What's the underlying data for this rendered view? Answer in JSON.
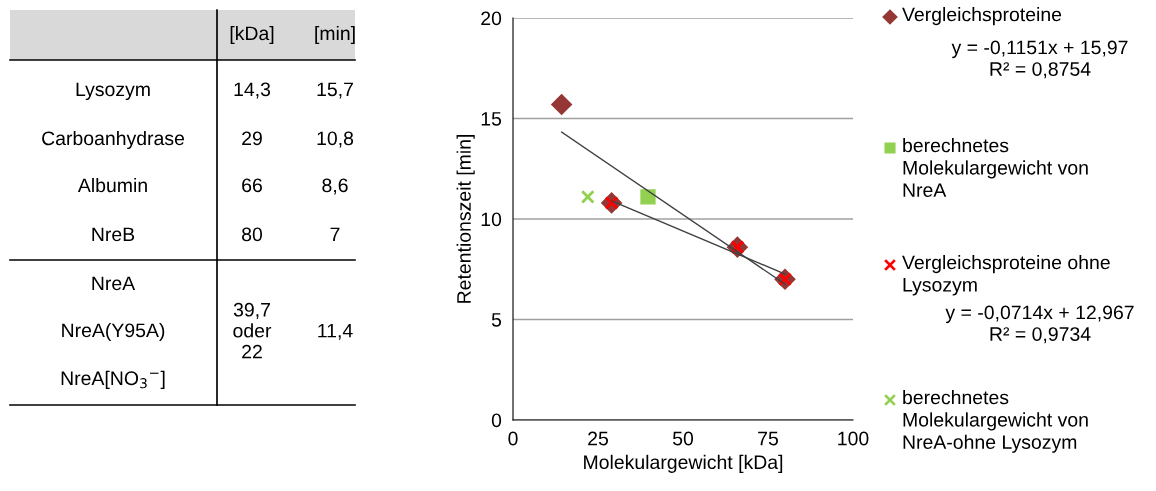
{
  "chart_data": [
    {
      "type": "other",
      "annotations": [
        "[kDa]",
        "[min]",
        "Lysozym",
        "14,3",
        "15,7",
        "Carboanhydrase",
        "29",
        "10,8",
        "Albumin",
        "66",
        "8,6",
        "NreB",
        "80",
        "7",
        "NreA",
        "39,7\noder\n22",
        "11,4",
        "NreA(Y95A)",
        "NreA[NO$_{3}$$^{−}$]"
      ]
    },
    {
      "type": "scatter",
      "xlabel": "Molekulargewicht [kDa]",
      "ylabel": "Retentionszeit [min]",
      "xlim": [
        0,
        100
      ],
      "xticks": [
        0,
        25,
        50,
        75,
        100
      ],
      "ylim": [
        0,
        20
      ],
      "yticks": [
        0,
        5,
        10,
        15,
        20
      ],
      "grid": "y",
      "legend": "right",
      "series": [
        {
          "type": "line",
          "x": [
            14.3,
            80
          ],
          "values": [
            14.32,
            6.76
          ],
          "color": "#404040",
          "marker": "none"
        },
        {
          "type": "line",
          "x": [
            29,
            80
          ],
          "values": [
            10.9,
            7.26
          ],
          "color": "#404040",
          "marker": "none"
        },
        {
          "name": "Vergleichsproteine",
          "x": [
            14.3,
            29,
            66,
            80
          ],
          "values": [
            15.7,
            10.8,
            8.6,
            7
          ],
          "color": "#953735",
          "marker": "diamond"
        },
        {
          "name": "berechnetes\nMolekulargewicht von\nNreA",
          "x": [
            39.7
          ],
          "values": [
            11.1
          ],
          "color": "#92d050",
          "marker": "square"
        },
        {
          "name": "Vergleichsproteine ohne\nLysozym",
          "x": [
            29,
            66,
            80
          ],
          "values": [
            10.8,
            8.6,
            7
          ],
          "color": "#ff0000",
          "marker": "cross"
        },
        {
          "name": "berechnetes\nMolekulargewicht von\nNreA-ohne Lysozym",
          "x": [
            22
          ],
          "values": [
            11.1
          ],
          "color": "#92d050",
          "marker": "cross"
        }
      ],
      "annotations": [
        "y = -0,1151x + 15,97\nR² = 0,8754",
        "y = -0,0714x + 12,967\nR² = 0,9734"
      ]
    }
  ]
}
